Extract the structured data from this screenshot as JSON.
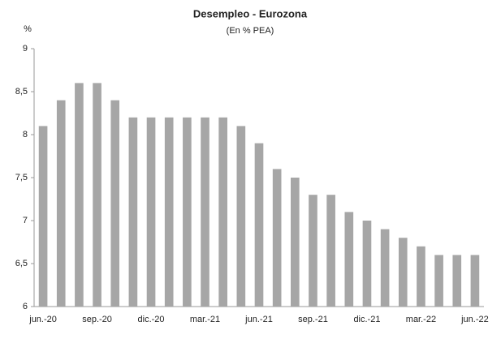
{
  "chart_data": {
    "type": "bar",
    "title": "Desempleo - Eurozona",
    "subtitle": "(En % PEA)",
    "y_label": "%",
    "categories": [
      "jun.-20",
      null,
      null,
      "sep.-20",
      null,
      null,
      "dic.-20",
      null,
      null,
      "mar.-21",
      null,
      null,
      "jun.-21",
      null,
      null,
      "sep.-21",
      null,
      null,
      "dic.-21",
      null,
      null,
      "mar.-22",
      null,
      null,
      "jun.-22"
    ],
    "values": [
      8.1,
      8.4,
      8.6,
      8.6,
      8.4,
      8.2,
      8.2,
      8.2,
      8.2,
      8.2,
      8.2,
      8.1,
      7.9,
      7.6,
      7.5,
      7.3,
      7.3,
      7.1,
      7.0,
      6.9,
      6.8,
      6.7,
      6.6,
      6.6,
      6.6
    ],
    "color": "#a6a6a6",
    "ylim": [
      6,
      9
    ],
    "yticks": [
      6,
      {
        "value": 6.5,
        "label": "6,5"
      },
      7,
      {
        "value": 7.5,
        "label": "7,5"
      },
      8,
      {
        "value": 8.5,
        "label": "8,5"
      },
      9
    ],
    "grid": false
  }
}
